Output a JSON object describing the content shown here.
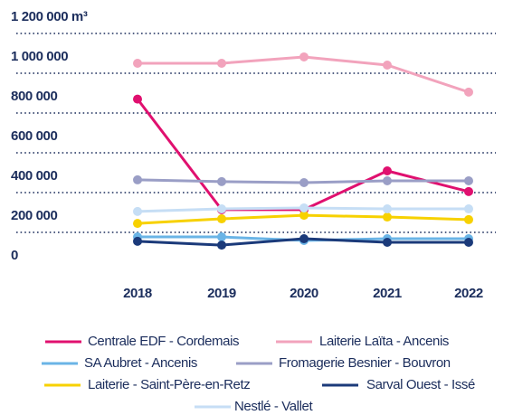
{
  "chart_data": {
    "type": "line",
    "categories": [
      "2018",
      "2019",
      "2020",
      "2021",
      "2022"
    ],
    "series": [
      {
        "name": "Centrale EDF - Cordemais",
        "color": "#e0106f",
        "values": [
          870000,
          314000,
          314000,
          509000,
          405000
        ]
      },
      {
        "name": "Laiterie Laïta - Ancenis",
        "color": "#f2a3bc",
        "values": [
          1050000,
          1050000,
          1082000,
          1041000,
          905000
        ]
      },
      {
        "name": "SA Aubret - Ancenis",
        "color": "#6ab4e6",
        "values": [
          177000,
          177000,
          159000,
          168000,
          168000
        ]
      },
      {
        "name": "Fromagerie Besnier - Bouvron",
        "color": "#9a9ec6",
        "values": [
          464000,
          455000,
          450000,
          459000,
          459000
        ]
      },
      {
        "name": "Laiterie - Saint-Père-en-Retz",
        "color": "#f7d100",
        "values": [
          245000,
          268000,
          286000,
          277000,
          264000
        ]
      },
      {
        "name": "Sarval Ouest - Issé",
        "color": "#1b3a7a",
        "values": [
          155000,
          136000,
          168000,
          150000,
          150000
        ]
      },
      {
        "name": "Nestlé - Vallet",
        "color": "#c6def5",
        "values": [
          305000,
          318000,
          323000,
          318000,
          318000
        ]
      }
    ],
    "ylim": [
      0,
      1200000
    ],
    "yticks": [
      0,
      {
        "value": 200000,
        "label": "200 000"
      },
      {
        "value": 400000,
        "label": "400 000"
      },
      {
        "value": 600000,
        "label": "600 000"
      },
      {
        "value": 800000,
        "label": "800 000"
      },
      {
        "value": 1000000,
        "label": "1 000 000"
      },
      {
        "value": 1200000,
        "label": "1 200 000 m³"
      }
    ],
    "grid": true
  }
}
